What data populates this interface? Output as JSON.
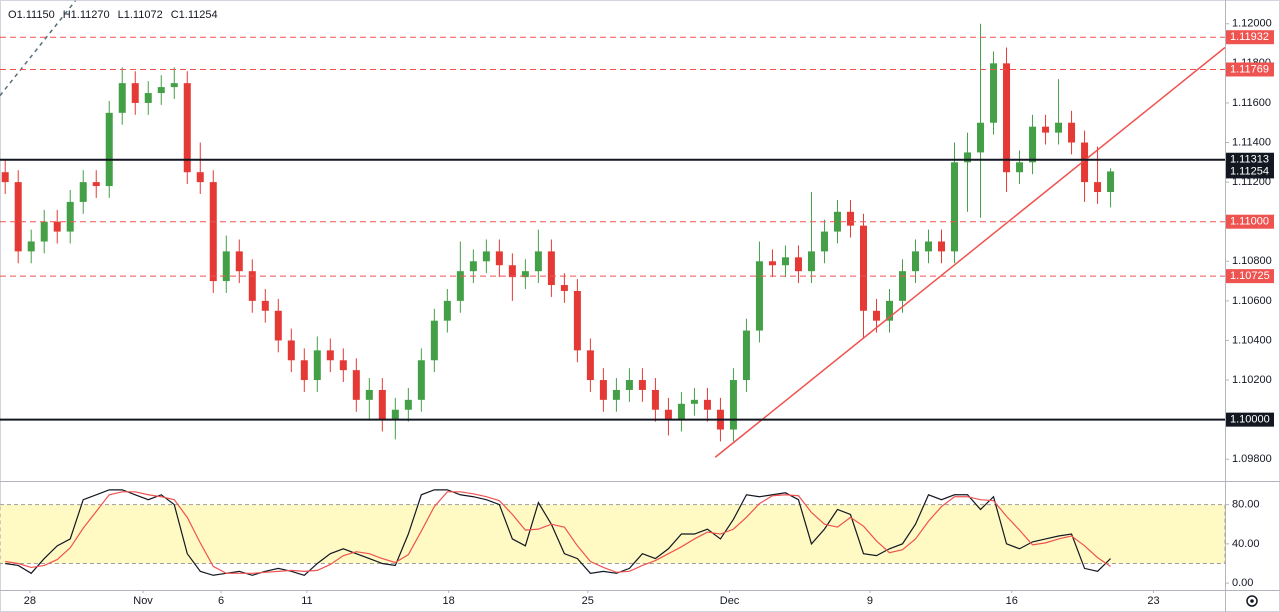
{
  "chart_data": [
    {
      "type": "candlestick",
      "ohlc_legend": [
        {
          "label": "O",
          "value": "1.11150"
        },
        {
          "label": "H",
          "value": "1.11270"
        },
        {
          "label": "L",
          "value": "1.11072"
        },
        {
          "label": "C",
          "value": "1.11254"
        }
      ],
      "x": [
        0,
        1,
        2,
        3,
        4,
        5,
        6,
        7,
        8,
        9,
        10,
        11,
        12,
        13,
        14,
        15,
        16,
        17,
        18,
        19,
        20,
        21,
        22,
        23,
        24,
        25,
        26,
        27,
        28,
        29,
        30,
        31,
        32,
        33,
        34,
        35,
        36,
        37,
        38,
        39,
        40,
        41,
        42,
        43,
        44,
        45,
        46,
        47,
        48,
        49,
        50,
        51,
        52,
        53,
        54,
        55,
        56,
        57,
        58,
        59,
        60,
        61,
        62,
        63,
        64,
        65,
        66,
        67,
        68,
        69,
        70,
        71,
        72,
        73,
        74,
        75,
        76,
        77,
        78,
        79,
        80,
        81,
        82,
        83,
        84,
        85
      ],
      "candles": [
        [
          1.1125,
          1.1131,
          1.1114,
          1.112
        ],
        [
          1.112,
          1.1126,
          1.1079,
          1.1085
        ],
        [
          1.1085,
          1.1096,
          1.1079,
          1.109
        ],
        [
          1.109,
          1.1106,
          1.1084,
          1.11
        ],
        [
          1.11,
          1.1106,
          1.1089,
          1.1095
        ],
        [
          1.1095,
          1.1116,
          1.1089,
          1.111
        ],
        [
          1.111,
          1.1126,
          1.1104,
          1.112
        ],
        [
          1.112,
          1.1126,
          1.1112,
          1.1118
        ],
        [
          1.1118,
          1.1161,
          1.1112,
          1.1155
        ],
        [
          1.1155,
          1.1178,
          1.1149,
          1.117
        ],
        [
          1.117,
          1.1176,
          1.1154,
          1.116
        ],
        [
          1.116,
          1.1171,
          1.1154,
          1.1165
        ],
        [
          1.1165,
          1.1174,
          1.1159,
          1.1168
        ],
        [
          1.1168,
          1.1178,
          1.1162,
          1.117
        ],
        [
          1.117,
          1.1176,
          1.1119,
          1.1125
        ],
        [
          1.1125,
          1.114,
          1.1114,
          1.112
        ],
        [
          1.112,
          1.1126,
          1.1064,
          1.107
        ],
        [
          1.107,
          1.1093,
          1.1064,
          1.1085
        ],
        [
          1.1085,
          1.1091,
          1.1069,
          1.1075
        ],
        [
          1.1075,
          1.1081,
          1.1054,
          1.106
        ],
        [
          1.106,
          1.1066,
          1.1049,
          1.1055
        ],
        [
          1.1055,
          1.1061,
          1.1034,
          1.104
        ],
        [
          1.104,
          1.1046,
          1.1024,
          1.103
        ],
        [
          1.103,
          1.1036,
          1.1014,
          1.102
        ],
        [
          1.102,
          1.1042,
          1.1014,
          1.1035
        ],
        [
          1.1035,
          1.1041,
          1.1024,
          1.103
        ],
        [
          1.103,
          1.1036,
          1.1019,
          1.1025
        ],
        [
          1.1025,
          1.1031,
          1.1004,
          1.101
        ],
        [
          1.101,
          1.1021,
          1.1,
          1.1015
        ],
        [
          1.1015,
          1.1021,
          1.0994,
          1.1
        ],
        [
          1.1,
          1.1011,
          1.099,
          1.1005
        ],
        [
          1.1005,
          1.1016,
          1.0999,
          1.101
        ],
        [
          1.101,
          1.1036,
          1.1004,
          1.103
        ],
        [
          1.103,
          1.1056,
          1.1024,
          1.105
        ],
        [
          1.105,
          1.1066,
          1.1044,
          1.106
        ],
        [
          1.106,
          1.109,
          1.1054,
          1.1075
        ],
        [
          1.1075,
          1.1086,
          1.1069,
          1.108
        ],
        [
          1.108,
          1.1091,
          1.1074,
          1.1085
        ],
        [
          1.1085,
          1.1091,
          1.1072,
          1.1078
        ],
        [
          1.1078,
          1.1084,
          1.106,
          1.1072
        ],
        [
          1.1072,
          1.1081,
          1.1066,
          1.1075
        ],
        [
          1.1075,
          1.1096,
          1.1069,
          1.1085
        ],
        [
          1.1085,
          1.1091,
          1.1062,
          1.1068
        ],
        [
          1.1068,
          1.1074,
          1.1059,
          1.1065
        ],
        [
          1.1065,
          1.1071,
          1.1029,
          1.1035
        ],
        [
          1.1035,
          1.1041,
          1.1014,
          1.102
        ],
        [
          1.102,
          1.1026,
          1.1004,
          1.101
        ],
        [
          1.101,
          1.1021,
          1.1004,
          1.1015
        ],
        [
          1.1015,
          1.1026,
          1.1009,
          1.102
        ],
        [
          1.102,
          1.1026,
          1.1009,
          1.1015
        ],
        [
          1.1015,
          1.1021,
          1.0999,
          1.1005
        ],
        [
          1.1005,
          1.1011,
          1.0992,
          1.1
        ],
        [
          1.1,
          1.1014,
          1.0994,
          1.1008
        ],
        [
          1.1008,
          1.1016,
          1.1002,
          1.101
        ],
        [
          1.101,
          1.1016,
          1.0999,
          1.1005
        ],
        [
          1.1005,
          1.1011,
          1.0989,
          1.0995
        ],
        [
          1.0995,
          1.1026,
          1.0989,
          1.102
        ],
        [
          1.102,
          1.1051,
          1.1014,
          1.1045
        ],
        [
          1.1045,
          1.109,
          1.1039,
          1.108
        ],
        [
          1.108,
          1.1086,
          1.1072,
          1.1078
        ],
        [
          1.1078,
          1.1088,
          1.1072,
          1.1082
        ],
        [
          1.1082,
          1.1088,
          1.1069,
          1.1075
        ],
        [
          1.1075,
          1.1115,
          1.1069,
          1.1085
        ],
        [
          1.1085,
          1.1101,
          1.1079,
          1.1095
        ],
        [
          1.1095,
          1.1111,
          1.1089,
          1.1105
        ],
        [
          1.1105,
          1.1111,
          1.1092,
          1.1098
        ],
        [
          1.1098,
          1.1104,
          1.1041,
          1.1055
        ],
        [
          1.1055,
          1.1061,
          1.1044,
          1.105
        ],
        [
          1.105,
          1.1066,
          1.1044,
          1.106
        ],
        [
          1.106,
          1.1081,
          1.1054,
          1.1075
        ],
        [
          1.1075,
          1.1091,
          1.1069,
          1.1085
        ],
        [
          1.1085,
          1.1096,
          1.1079,
          1.109
        ],
        [
          1.109,
          1.1096,
          1.1079,
          1.1085
        ],
        [
          1.1085,
          1.114,
          1.1079,
          1.113
        ],
        [
          1.113,
          1.1145,
          1.1105,
          1.1135
        ],
        [
          1.1135,
          1.12,
          1.1102,
          1.115
        ],
        [
          1.115,
          1.1186,
          1.1144,
          1.118
        ],
        [
          1.118,
          1.1188,
          1.1115,
          1.1125
        ],
        [
          1.1125,
          1.1136,
          1.1119,
          1.113
        ],
        [
          1.113,
          1.1154,
          1.1124,
          1.1148
        ],
        [
          1.1148,
          1.1154,
          1.1139,
          1.1145
        ],
        [
          1.1145,
          1.1172,
          1.1139,
          1.115
        ],
        [
          1.115,
          1.1156,
          1.1134,
          1.114
        ],
        [
          1.114,
          1.1146,
          1.111,
          1.112
        ],
        [
          1.112,
          1.1138,
          1.1109,
          1.1115
        ],
        [
          1.1115,
          1.1127,
          1.11072,
          1.11254
        ]
      ],
      "up_color": "#43a047",
      "down_color": "#e53935",
      "xlim": [
        -0.4,
        93.8
      ],
      "ylim": [
        1.0969,
        1.1212
      ],
      "yticks": [
        {
          "value": 1.098,
          "label": "1.09800"
        },
        {
          "value": 1.1,
          "label": "1.10000"
        },
        {
          "value": 1.102,
          "label": "1.10200"
        },
        {
          "value": 1.104,
          "label": "1.10400"
        },
        {
          "value": 1.106,
          "label": "1.10600"
        },
        {
          "value": 1.108,
          "label": "1.10800"
        },
        {
          "value": 1.11,
          "label": "1.11000"
        },
        {
          "value": 1.112,
          "label": "1.11200"
        },
        {
          "value": 1.114,
          "label": "1.11400"
        },
        {
          "value": 1.116,
          "label": "1.11600"
        },
        {
          "value": 1.118,
          "label": "1.11800"
        },
        {
          "value": 1.12,
          "label": "1.12000"
        }
      ],
      "levels": [
        {
          "value": 1.11932,
          "label": "1.11932",
          "color": "#ef5350",
          "dashed": true
        },
        {
          "value": 1.11769,
          "label": "1.11769",
          "color": "#ef5350",
          "dashed": true
        },
        {
          "value": 1.11313,
          "label": "1.11313",
          "color": "#131722",
          "dashed": false
        },
        {
          "value": 1.11,
          "label": "1.11000",
          "color": "#ef5350",
          "dashed": true
        },
        {
          "value": 1.10725,
          "label": "1.10725",
          "color": "#ef5350",
          "dashed": true
        },
        {
          "value": 1.1,
          "label": "1.10000",
          "color": "#131722",
          "dashed": false
        }
      ],
      "last_price": {
        "value": 1.11254,
        "label": "1.11254",
        "color": "#131722"
      },
      "trend_lines": [
        {
          "x": [
            54.6,
            93.8
          ],
          "y": [
            1.0981,
            1.1188
          ],
          "color": "#ef5350",
          "dashed": false
        },
        {
          "x": [
            -0.4,
            5.4
          ],
          "y": [
            1.11637,
            1.12116
          ],
          "color": "#546e7a",
          "dashed": true
        }
      ]
    },
    {
      "type": "line",
      "x": [
        0,
        1,
        2,
        3,
        4,
        5,
        6,
        7,
        8,
        9,
        10,
        11,
        12,
        13,
        14,
        15,
        16,
        17,
        18,
        19,
        20,
        21,
        22,
        23,
        24,
        25,
        26,
        27,
        28,
        29,
        30,
        31,
        32,
        33,
        34,
        35,
        36,
        37,
        38,
        39,
        40,
        41,
        42,
        43,
        44,
        45,
        46,
        47,
        48,
        49,
        50,
        51,
        52,
        53,
        54,
        55,
        56,
        57,
        58,
        59,
        60,
        61,
        62,
        63,
        64,
        65,
        66,
        67,
        68,
        69,
        70,
        71,
        72,
        73,
        74,
        75,
        76,
        77,
        78,
        79,
        80,
        81,
        82,
        83,
        84,
        85
      ],
      "series": [
        {
          "color": "#131722",
          "values": [
            20,
            18,
            10,
            25,
            38,
            45,
            85,
            90,
            95,
            95,
            90,
            85,
            90,
            80,
            30,
            12,
            8,
            10,
            12,
            8,
            12,
            15,
            12,
            8,
            20,
            30,
            35,
            30,
            25,
            20,
            18,
            50,
            90,
            95,
            95,
            90,
            88,
            85,
            80,
            45,
            38,
            82,
            60,
            30,
            25,
            10,
            12,
            10,
            15,
            30,
            25,
            35,
            50,
            50,
            55,
            45,
            65,
            90,
            88,
            90,
            92,
            85,
            40,
            55,
            75,
            70,
            30,
            28,
            35,
            40,
            60,
            90,
            85,
            90,
            90,
            75,
            88,
            40,
            35,
            42,
            45,
            48,
            50,
            15,
            12,
            25
          ]
        },
        {
          "color": "#ef5350",
          "values": [
            22,
            20,
            16,
            18,
            24,
            36,
            56,
            73,
            90,
            93,
            93,
            90,
            88,
            85,
            67,
            41,
            17,
            10,
            10,
            10,
            11,
            12,
            13,
            12,
            13,
            19,
            28,
            32,
            30,
            25,
            21,
            29,
            53,
            78,
            93,
            93,
            91,
            88,
            84,
            70,
            54,
            55,
            60,
            57,
            38,
            22,
            16,
            11,
            12,
            18,
            23,
            30,
            37,
            45,
            52,
            50,
            55,
            67,
            81,
            89,
            90,
            89,
            72,
            60,
            57,
            67,
            58,
            43,
            31,
            34,
            45,
            63,
            78,
            88,
            88,
            85,
            84,
            68,
            54,
            39,
            41,
            45,
            48,
            38,
            26,
            17
          ]
        }
      ],
      "band": [
        20,
        80
      ],
      "band_color": "#fff9c4",
      "xlim": [
        -0.4,
        93.8
      ],
      "ylim": [
        -7,
        103
      ],
      "yticks": [
        {
          "value": 0,
          "label": "0.00"
        },
        {
          "value": 40,
          "label": "40.00"
        },
        {
          "value": 80,
          "label": "80.00"
        }
      ],
      "xticks": [
        {
          "value": 1.9,
          "label": "28"
        },
        {
          "value": 10.6,
          "label": "Nov"
        },
        {
          "value": 16.6,
          "label": "6"
        },
        {
          "value": 23.2,
          "label": "11"
        },
        {
          "value": 34.1,
          "label": "18"
        },
        {
          "value": 44.8,
          "label": "25"
        },
        {
          "value": 55.7,
          "label": "Dec"
        },
        {
          "value": 66.5,
          "label": "9"
        },
        {
          "value": 77.4,
          "label": "16"
        },
        {
          "value": 88.3,
          "label": "23"
        }
      ]
    }
  ]
}
